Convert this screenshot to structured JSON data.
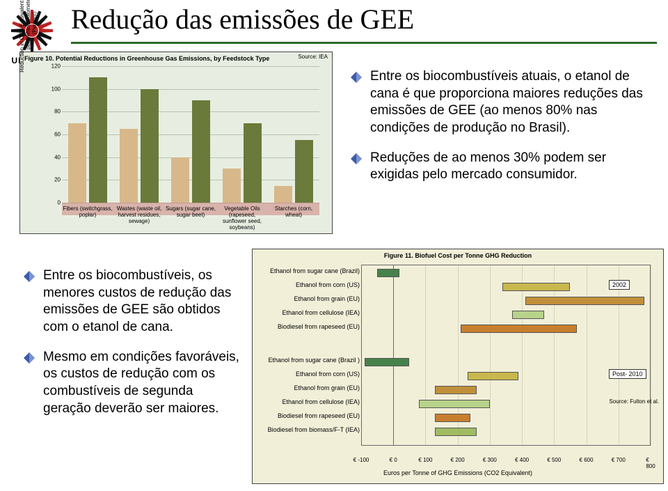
{
  "logo_text": "UNICAMP",
  "title": "Redução das emissões de GEE",
  "rule_color": "#2a6b2a",
  "bullets_right": [
    {
      "color": "#3c5aa8",
      "text": "Entre os biocombustíveis atuais, o etanol de cana é que proporciona maiores reduções das emissões de GEE (ao menos 80% nas condições de produção no Brasil)."
    },
    {
      "color": "#3c5aa8",
      "text": "Reduções de ao menos 30% podem ser exigidas pelo mercado consumidor."
    }
  ],
  "bullets_left": [
    {
      "color": "#3c5aa8",
      "text": "Entre os biocombustíveis, os menores custos de redução das emissões de GEE são obtidos com o etanol de cana."
    },
    {
      "color": "#3c5aa8",
      "text": "Mesmo em condições favoráveis, os custos de redução com os combustíveis de segunda geração deverão ser maiores."
    }
  ],
  "fig10": {
    "caption": "Figure 10.  Potential Reductions in Greenhouse Gas Emissions, by Feedstock Type",
    "source": "Source: IEA",
    "ylabel": "Reduction in CO2-Equivalent Emissions\nper Vehicle-Kilometer\n(Percent)",
    "bg": "#e7eee1",
    "grid_color": "#b8c3b0",
    "below_color": "#c97878",
    "ylim": [
      0,
      120
    ],
    "ytick_step": 20,
    "categories": [
      "Fibers (switchgrass, poplar)",
      "Wastes (waste oil, harvest residues, sewage)",
      "Sugars (sugar cane, sugar beet)",
      "Vegetable Oils (rapeseed, sunflower seed, soybeans)",
      "Starches (corn, wheat)"
    ],
    "lows": [
      70,
      65,
      40,
      30,
      15
    ],
    "highs": [
      110,
      100,
      90,
      70,
      55
    ],
    "low_color": "#d8b88a",
    "high_color": "#6a7a3b"
  },
  "fig11": {
    "caption": "Figure 11.  Biofuel Cost per Tonne GHG Reduction",
    "source": "Source: Fulton et al.",
    "bg": "#f1efd8",
    "axis_color": "#6a6a6a",
    "xlim": [
      -100,
      800
    ],
    "xtick_step": 100,
    "xtitle": "Euros per Tonne of GHG Emissions (CO2 Equivalent)",
    "year_labels": [
      {
        "text": "2002",
        "yidx": 1
      },
      {
        "text": "Post-\n2010",
        "yidx": 6
      }
    ],
    "rows": [
      {
        "label": "Ethanol from sugar cane (Brazil)",
        "lo": -50,
        "hi": 20,
        "color": "#46824b",
        "group": 0
      },
      {
        "label": "Ethanol from corn (US)",
        "lo": 340,
        "hi": 550,
        "color": "#c8b84d",
        "group": 0
      },
      {
        "label": "Ethanol from grain (EU)",
        "lo": 410,
        "hi": 780,
        "color": "#c18f3a",
        "group": 0
      },
      {
        "label": "Ethanol from cellulose (IEA)",
        "lo": 370,
        "hi": 470,
        "color": "#b8d38a",
        "group": 0
      },
      {
        "label": "Biodiesel from rapeseed (EU)",
        "lo": 210,
        "hi": 570,
        "color": "#c77f2e",
        "group": 0
      },
      {
        "label": "Ethanol from sugar cane (Brazil )",
        "lo": -90,
        "hi": 50,
        "color": "#46824b",
        "group": 1
      },
      {
        "label": "Ethanol from corn (US)",
        "lo": 230,
        "hi": 390,
        "color": "#c8b84d",
        "group": 1
      },
      {
        "label": "Ethanol from grain (EU)",
        "lo": 130,
        "hi": 260,
        "color": "#c18f3a",
        "group": 1
      },
      {
        "label": "Ethanol from cellulose (IEA)",
        "lo": 80,
        "hi": 300,
        "color": "#b8d38a",
        "group": 1
      },
      {
        "label": "Biodiesel from rapeseed (EU)",
        "lo": 130,
        "hi": 240,
        "color": "#c77f2e",
        "group": 1
      },
      {
        "label": "Biodiesel from biomass/F-T (IEA)",
        "lo": 130,
        "hi": 260,
        "color": "#a0bc63",
        "group": 1
      }
    ]
  }
}
